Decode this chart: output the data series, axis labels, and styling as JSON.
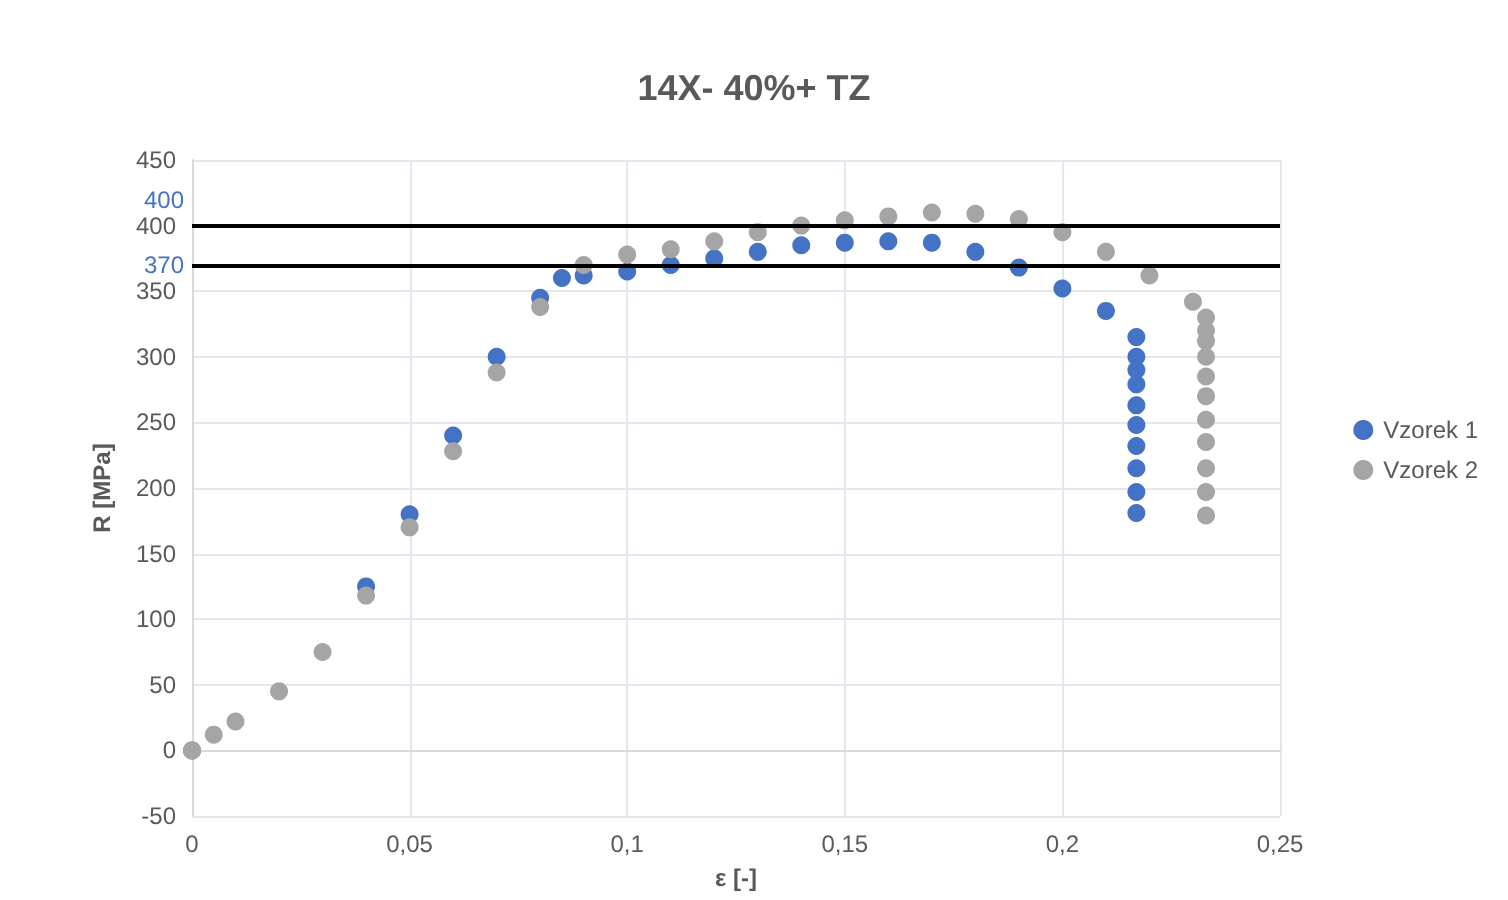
{
  "chart_data": {
    "type": "scatter",
    "title": "14X- 40%+ TZ",
    "xlabel": "ε [-]",
    "ylabel": "R [MPa]",
    "xlim": [
      0,
      0.25
    ],
    "xticks": [
      0,
      {
        "value": 0.05,
        "label": "0,05"
      },
      {
        "value": 0.1,
        "label": "0,1"
      },
      {
        "value": 0.15,
        "label": "0,15"
      },
      {
        "value": 0.2,
        "label": "0,2"
      },
      {
        "value": 0.25,
        "label": "0,25"
      }
    ],
    "ylim": [
      -50,
      450
    ],
    "yticks": [
      -50,
      0,
      50,
      100,
      150,
      200,
      250,
      300,
      350,
      400,
      450
    ],
    "grid": true,
    "legend": "right",
    "marker": "circle",
    "ref_lines": [
      {
        "axis": "y",
        "value": 400,
        "label": "400",
        "color": "#000000"
      },
      {
        "axis": "y",
        "value": 370,
        "label": "370",
        "color": "#000000"
      }
    ],
    "series": [
      {
        "name": "Vzorek 1",
        "color": "#4472c4",
        "x": [
          0,
          0.005,
          0.01,
          0.02,
          0.03,
          0.04,
          0.05,
          0.06,
          0.07,
          0.08,
          0.085,
          0.09,
          0.1,
          0.11,
          0.12,
          0.13,
          0.14,
          0.15,
          0.16,
          0.17,
          0.18,
          0.19,
          0.2,
          0.21,
          0.217,
          0.217,
          0.217,
          0.217,
          0.217,
          0.217,
          0.217,
          0.217,
          0.217,
          0.217
        ],
        "values": [
          0,
          null,
          null,
          null,
          null,
          125,
          180,
          240,
          300,
          345,
          360,
          362,
          365,
          370,
          375,
          380,
          385,
          387,
          388,
          387,
          380,
          368,
          352,
          335,
          315,
          300,
          290,
          279,
          263,
          248,
          232,
          215,
          197,
          181
        ]
      },
      {
        "name": "Vzorek 2",
        "color": "#a5a5a5",
        "x": [
          0,
          0.005,
          0.01,
          0.02,
          0.03,
          0.04,
          0.05,
          0.06,
          0.07,
          0.08,
          0.09,
          0.1,
          0.11,
          0.12,
          0.13,
          0.14,
          0.15,
          0.16,
          0.17,
          0.18,
          0.19,
          0.2,
          0.21,
          0.22,
          0.23,
          0.233,
          0.233,
          0.233,
          0.233,
          0.233,
          0.233,
          0.233,
          0.233,
          0.233,
          0.233,
          0.233
        ],
        "values": [
          0,
          12,
          22,
          45,
          75,
          118,
          170,
          228,
          288,
          338,
          370,
          378,
          382,
          388,
          395,
          400,
          404,
          407,
          410,
          409,
          405,
          395,
          380,
          362,
          342,
          330,
          320,
          312,
          300,
          285,
          270,
          252,
          235,
          215,
          197,
          179
        ]
      }
    ]
  }
}
